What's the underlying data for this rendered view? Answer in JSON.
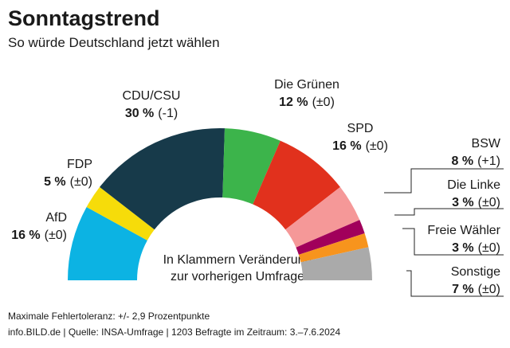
{
  "chart_data": {
    "type": "semi-donut",
    "title": "Sonntagstrend",
    "subtitle": "So würde Deutschland jetzt wählen",
    "categories": [
      "AfD",
      "FDP",
      "CDU/CSU",
      "Die Grünen",
      "SPD",
      "BSW",
      "Die Linke",
      "Freie Wähler",
      "Sonstige"
    ],
    "values": [
      16,
      5,
      30,
      12,
      16,
      8,
      3,
      3,
      7
    ],
    "value_labels": [
      "16 %",
      "5 %",
      "30 %",
      "12 %",
      "16 %",
      "8 %",
      "3 %",
      "3 %",
      "7 %"
    ],
    "changes": [
      "(±0)",
      "(±0)",
      "(-1)",
      "(±0)",
      "(±0)",
      "(+1)",
      "(±0)",
      "(±0)",
      "(±0)"
    ],
    "colors": [
      "#0cb3e3",
      "#f6dc0a",
      "#173a4a",
      "#3cb44b",
      "#e1311d",
      "#f59898",
      "#a1005b",
      "#f7941d",
      "#aaaaaa"
    ],
    "center_note": [
      "In Klammern Veränderung",
      "zur vorherigen Umfrage"
    ],
    "footer": [
      "Maximale Fehlertoleranz: +/- 2,9 Prozentpunkte",
      "info.BILD.de | Quelle: INSA-Umfrage | 1203 Befragte im Zeitraum: 3.–7.6.2024"
    ]
  }
}
